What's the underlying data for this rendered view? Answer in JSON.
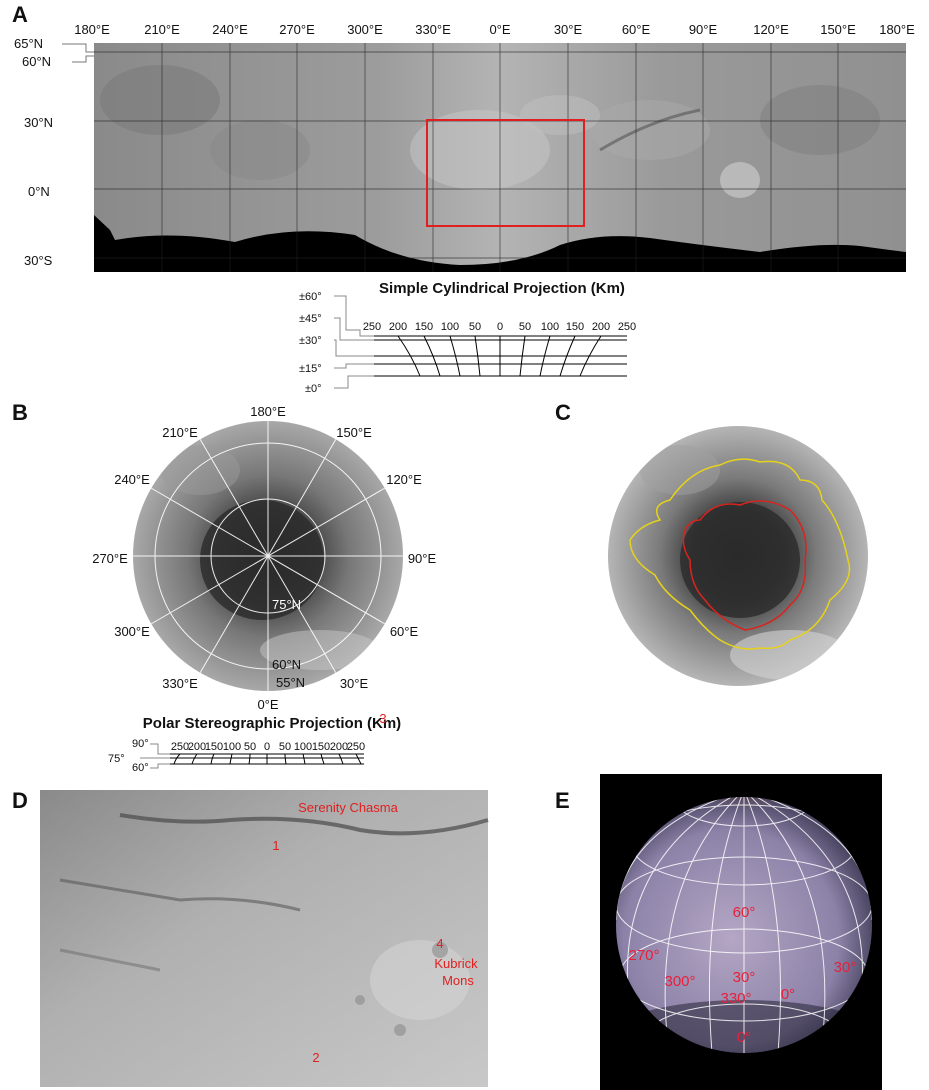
{
  "panels": {
    "a": {
      "letter": "A",
      "lon_labels": [
        "180°E",
        "210°E",
        "240°E",
        "270°E",
        "300°E",
        "330°E",
        "0°E",
        "30°E",
        "60°E",
        "90°E",
        "120°E",
        "150°E",
        "180°E"
      ],
      "lat_labels": [
        "65°N",
        "60°N",
        "30°N",
        "0°N",
        "30°S"
      ],
      "scale_title": "Simple Cylindrical Projection (Km)",
      "scale_lat_labels": [
        "±60°",
        "±45°",
        "±30°",
        "±15°",
        "±0°"
      ],
      "scale_km_labels": [
        "250",
        "200",
        "150",
        "100",
        "50",
        "0",
        "50",
        "100",
        "150",
        "200",
        "250"
      ]
    },
    "b": {
      "letter": "B",
      "lon_labels": [
        "180°E",
        "150°E",
        "120°E",
        "90°E",
        "60°E",
        "30°E",
        "0°E",
        "330°E",
        "300°E",
        "270°E",
        "240°E",
        "210°E"
      ],
      "lat_labels": [
        "75°N",
        "60°N",
        "55°N"
      ],
      "scale_title": "Polar Stereographic Projection (Km)",
      "scale_lat_labels": [
        "90°",
        "75°",
        "60°"
      ],
      "scale_km_labels": [
        "250",
        "200",
        "150",
        "100",
        "50",
        "0",
        "50",
        "100",
        "150",
        "200",
        "250"
      ]
    },
    "c": {
      "letter": "C"
    },
    "d": {
      "letter": "D",
      "features": [
        "Serenity Chasma",
        "1",
        "2",
        "3",
        "4",
        "Kubrick",
        "Mons"
      ]
    },
    "e": {
      "letter": "E",
      "grid_labels": [
        "60°",
        "270°",
        "300°",
        "30°",
        "330°",
        "0°",
        "30°",
        "0°"
      ]
    }
  },
  "colors": {
    "annotation_red": "#e02020",
    "outline_yellow": "#e6d21a",
    "outline_red": "#d8241e",
    "grid_white": "#ffffff"
  }
}
